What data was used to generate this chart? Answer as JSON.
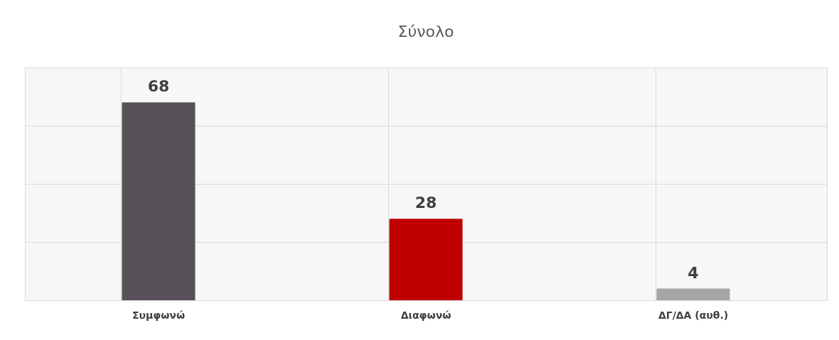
{
  "chart_data": {
    "type": "bar",
    "title": "Σύνολο",
    "categories": [
      "Συμφωνώ",
      "Διαφωνώ",
      "ΔΓ/ΔΑ (αυθ.)"
    ],
    "values": [
      68,
      28,
      4
    ],
    "colors": [
      "#595159",
      "#c00000",
      "#a5a5a5"
    ],
    "ylim": [
      0,
      80
    ],
    "yticks": [
      {
        "value": 0,
        "label": null
      },
      {
        "value": 20,
        "label": null
      },
      {
        "value": 40,
        "label": null
      },
      {
        "value": 60,
        "label": null
      },
      {
        "value": 80,
        "label": null
      }
    ],
    "tick_labels": "x",
    "grid": true,
    "data_labels": true
  }
}
